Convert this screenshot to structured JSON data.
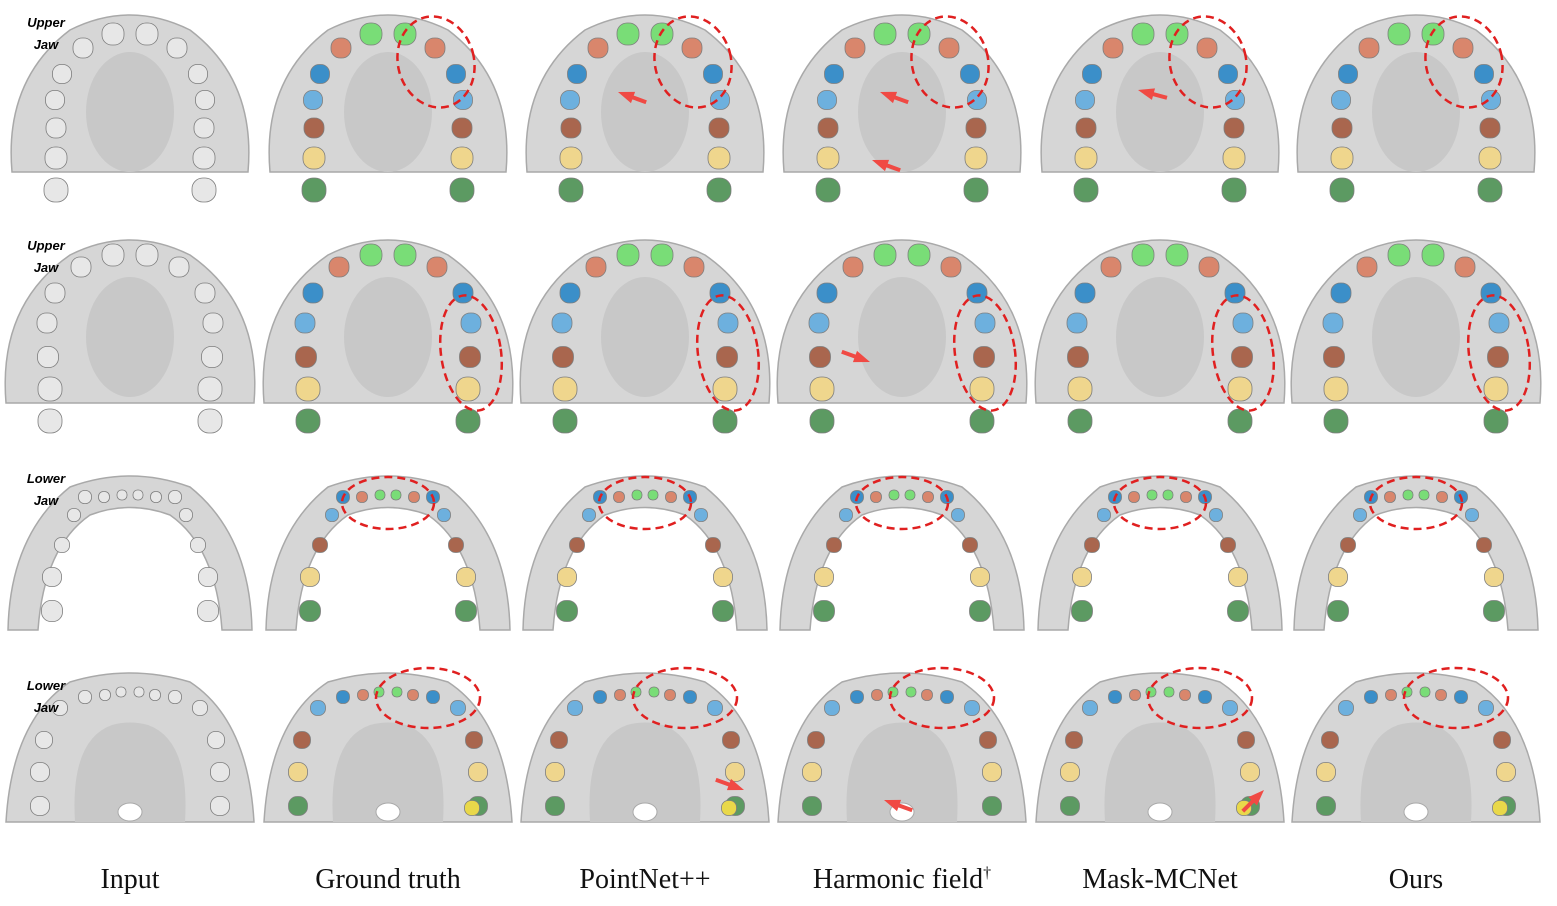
{
  "rows": [
    {
      "label_line1": "Upper",
      "label_line2": "Jaw"
    },
    {
      "label_line1": "Upper",
      "label_line2": "Jaw"
    },
    {
      "label_line1": "Lower",
      "label_line2": "Jaw"
    },
    {
      "label_line1": "Lower",
      "label_line2": "Jaw"
    }
  ],
  "columns": [
    {
      "caption": "Input",
      "sup": ""
    },
    {
      "caption": "Ground truth",
      "sup": ""
    },
    {
      "caption": "PointNet++",
      "sup": ""
    },
    {
      "caption": "Harmonic field",
      "sup": "†"
    },
    {
      "caption": "Mask-MCNet",
      "sup": ""
    },
    {
      "caption": "Ours",
      "sup": ""
    }
  ],
  "colors": {
    "gum": "#d6d6d6",
    "gum_edge": "#a9a9a9",
    "palate": "#c8c8c8",
    "tooth_plain": "#e7e7e7",
    "incisor": "#79dd77",
    "lateral": "#d9866c",
    "canine": "#3b8fc9",
    "premolar1": "#6db0de",
    "premolar2": "#a9664e",
    "molar1": "#efd68d",
    "molar2": "#5c9a62",
    "molar3": "#e9d84a",
    "highlight_circle": "#e02020",
    "arrow": "#f04a44"
  }
}
